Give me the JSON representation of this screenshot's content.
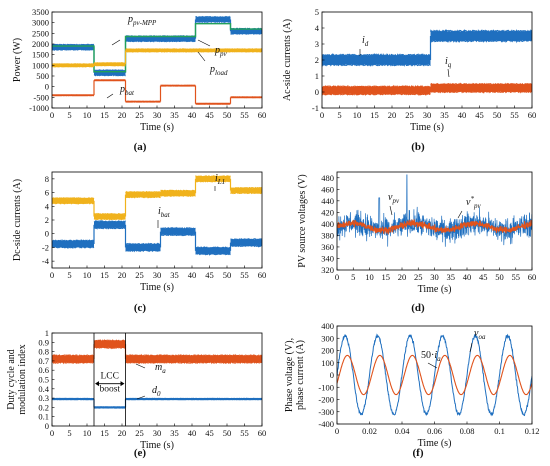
{
  "colors": {
    "blue": "#1f6fbf",
    "orange": "#e0531c",
    "yellow": "#f0b21c",
    "green": "#22a05a"
  },
  "panel_labels": [
    "(a)",
    "(b)",
    "(c)",
    "(d)",
    "(e)",
    "(f)"
  ],
  "chart_data": [
    {
      "id": "a",
      "type": "line",
      "xlabel": "Time (s)",
      "ylabel": "Power (W)",
      "xlim": [
        0,
        60
      ],
      "ylim": [
        -1000,
        3500
      ],
      "xticks": [
        0,
        5,
        10,
        15,
        20,
        25,
        30,
        35,
        40,
        45,
        50,
        55,
        60
      ],
      "yticks": [
        -1000,
        -500,
        0,
        500,
        1000,
        1500,
        2000,
        2500,
        3000,
        3500
      ],
      "segment_edges": [
        0,
        12,
        21,
        31,
        41,
        51,
        60
      ],
      "series": [
        {
          "key": "ppv",
          "label": "ppv",
          "color": "blue",
          "values": [
            1850,
            650,
            2250,
            2250,
            3150,
            2600
          ],
          "noise": 110
        },
        {
          "key": "ppvmpp",
          "label": "ppv-MPP",
          "color": "green",
          "values": [
            1900,
            700,
            2350,
            2350,
            2950,
            2700
          ],
          "noise": 0
        },
        {
          "key": "pload",
          "label": "pload",
          "color": "yellow",
          "values": [
            1000,
            1050,
            1700,
            1700,
            1700,
            1700
          ],
          "noise": 60
        },
        {
          "key": "pbat",
          "label": "pbat",
          "color": "orange",
          "values": [
            -400,
            300,
            -700,
            50,
            -800,
            -500
          ],
          "noise": 20
        }
      ],
      "annotations": [
        {
          "base": "p",
          "sub": "pv-MPP",
          "series": "ppvmpp"
        },
        {
          "base": "p",
          "sub": "pv",
          "series": "ppv"
        },
        {
          "base": "p",
          "sub": "load",
          "series": "pload"
        },
        {
          "base": "p",
          "sub": "bat",
          "series": "pbat"
        }
      ]
    },
    {
      "id": "b",
      "type": "line",
      "xlabel": "Time (s)",
      "ylabel": "Ac-side currents (A)",
      "xlim": [
        0,
        60
      ],
      "ylim": [
        -1,
        5
      ],
      "xticks": [
        0,
        5,
        10,
        15,
        20,
        25,
        30,
        35,
        40,
        45,
        50,
        55,
        60
      ],
      "yticks": [
        -1,
        0,
        1,
        2,
        3,
        4,
        5
      ],
      "segment_edges": [
        0,
        31,
        60
      ],
      "series": [
        {
          "key": "id",
          "label": "id",
          "color": "blue",
          "values": [
            2.0,
            3.5
          ],
          "noise": 0.28
        },
        {
          "key": "iq",
          "label": "iq",
          "color": "orange",
          "values": [
            0.1,
            0.25
          ],
          "noise": 0.22
        }
      ],
      "annotations": [
        {
          "base": "i",
          "sub": "d",
          "series": "id"
        },
        {
          "base": "i",
          "sub": "q",
          "series": "iq"
        }
      ]
    },
    {
      "id": "c",
      "type": "line",
      "xlabel": "Time (s)",
      "ylabel": "Dc-side currents (A)",
      "xlim": [
        0,
        60
      ],
      "ylim": [
        -5,
        9
      ],
      "xticks": [
        0,
        5,
        10,
        15,
        20,
        25,
        30,
        35,
        40,
        45,
        50,
        55,
        60
      ],
      "yticks": [
        -4,
        -2,
        0,
        2,
        4,
        6,
        8
      ],
      "segment_edges": [
        0,
        12,
        21,
        31,
        41,
        51,
        60
      ],
      "series": [
        {
          "key": "il1",
          "label": "iL1",
          "color": "yellow",
          "values": [
            4.8,
            2.5,
            5.7,
            5.9,
            8.0,
            6.3
          ],
          "noise": 0.35
        },
        {
          "key": "ibat",
          "label": "ibat",
          "color": "blue",
          "values": [
            -1.5,
            1.3,
            -2.0,
            0.3,
            -2.5,
            -1.3
          ],
          "noise": 0.45
        }
      ],
      "annotations": [
        {
          "base": "i",
          "sub": "L1",
          "series": "il1"
        },
        {
          "base": "i",
          "sub": "bat",
          "series": "ibat"
        }
      ]
    },
    {
      "id": "d",
      "type": "line",
      "xlabel": "Time (s)",
      "ylabel": "PV source voltages (V)",
      "xlim": [
        0,
        60
      ],
      "ylim": [
        320,
        490
      ],
      "xticks": [
        0,
        5,
        10,
        15,
        20,
        25,
        30,
        35,
        40,
        45,
        50,
        55,
        60
      ],
      "yticks": [
        320,
        340,
        360,
        380,
        400,
        420,
        440,
        460,
        480
      ],
      "series": [
        {
          "key": "vpv",
          "label": "vpv",
          "color": "blue",
          "mean": 395,
          "noise": 22
        },
        {
          "key": "vpvref",
          "label": "vpv*",
          "color": "orange",
          "mean": 395,
          "noise": 7
        }
      ],
      "annotations": [
        {
          "base": "v",
          "sub": "pv",
          "sup": ""
        },
        {
          "base": "v",
          "sub": "pv",
          "sup": "*"
        }
      ]
    },
    {
      "id": "e",
      "type": "line",
      "xlabel": "Time (s)",
      "ylabel": "Duty cycle and modulation index",
      "xlim": [
        0,
        60
      ],
      "ylim": [
        0,
        1
      ],
      "xticks": [
        0,
        5,
        10,
        15,
        20,
        25,
        30,
        35,
        40,
        45,
        50,
        55,
        60
      ],
      "yticks": [
        0,
        0.1,
        0.2,
        0.3,
        0.4,
        0.5,
        0.6,
        0.7,
        0.8,
        0.9,
        1
      ],
      "segment_edges": [
        0,
        12,
        21,
        60
      ],
      "series": [
        {
          "key": "ma",
          "label": "ma",
          "color": "orange",
          "values": [
            0.72,
            0.88,
            0.72
          ],
          "noise": 0.035
        },
        {
          "key": "d0",
          "label": "d0",
          "color": "blue",
          "values": [
            0.29,
            0.2,
            0.29
          ],
          "noise": 0.006
        }
      ],
      "box": {
        "label_line1": "LCC",
        "label_line2": "boost",
        "x0": 12,
        "x1": 21
      },
      "annotations": [
        {
          "base": "m",
          "sub": "a"
        },
        {
          "base": "d",
          "sub": "0"
        }
      ]
    },
    {
      "id": "f",
      "type": "line",
      "xlabel": "Time (s)",
      "ylabel_line1": "Phase voltage (V),",
      "ylabel_line2": "phase current (A)",
      "xlim": [
        0,
        0.12
      ],
      "ylim": [
        -400,
        400
      ],
      "xticks": [
        0,
        0.02,
        0.04,
        0.06,
        0.08,
        0.1,
        0.12
      ],
      "yticks": [
        -400,
        -300,
        -200,
        -100,
        0,
        100,
        200,
        300,
        400
      ],
      "frequency_hz": 50,
      "series": [
        {
          "key": "voa",
          "label": "voa",
          "color": "blue",
          "amplitude": 320,
          "phase_deg": 0
        },
        {
          "key": "ia50",
          "label": "50·ia",
          "color": "orange",
          "amplitude": 160,
          "phase_deg": -25
        }
      ],
      "annotations": [
        {
          "base": "v",
          "sub": "oa"
        },
        {
          "prefix": "50·",
          "base": "i",
          "sub": "a"
        }
      ]
    }
  ]
}
